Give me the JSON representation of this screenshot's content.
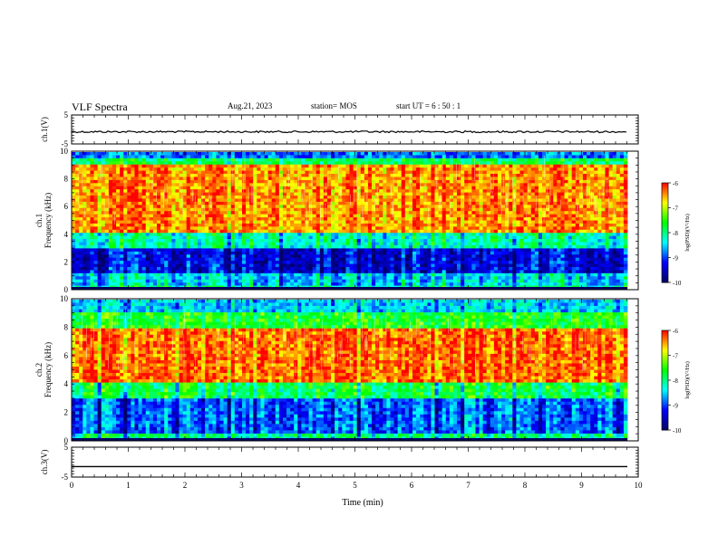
{
  "header": {
    "title": "VLF Spectra",
    "date": "Aug.21, 2023",
    "station": "station= MOS",
    "start": "start  UT =   6 : 50 : 1"
  },
  "chart_data": [
    {
      "type": "line",
      "panel": "ch1-waveform",
      "ylabel": "ch.1(V)",
      "ylim": [
        -5,
        5
      ],
      "yticks": [
        "5",
        "-5"
      ],
      "xlim": [
        0,
        10
      ],
      "series": [
        {
          "values_note": "",
          "level": -0.8
        }
      ]
    },
    {
      "type": "heatmap",
      "panel": "ch1-spectrogram",
      "ylabel_lines": [
        "ch.1",
        "Frequency (kHz)"
      ],
      "ylim": [
        0,
        10
      ],
      "yticks": [
        "0",
        "2",
        "4",
        "6",
        "8",
        "10"
      ],
      "xlim": [
        0,
        10
      ],
      "colorbar": {
        "label": "log(PSD)(V²/Hz)",
        "range": [
          -10,
          -6
        ],
        "ticks": [
          "-6",
          "-7",
          "-8",
          "-9",
          "-10"
        ]
      },
      "bands": [
        {
          "from": 0,
          "to": 0.3,
          "level": -8.0
        },
        {
          "from": 0.3,
          "to": 1.2,
          "level": -8.4
        },
        {
          "from": 1.2,
          "to": 3.0,
          "level": -9.3
        },
        {
          "from": 3.0,
          "to": 4.0,
          "level": -8.1
        },
        {
          "from": 4.0,
          "to": 9.0,
          "level": -6.4
        },
        {
          "from": 9.0,
          "to": 9.5,
          "level": -7.8
        },
        {
          "from": 9.5,
          "to": 10,
          "level": -8.8
        }
      ]
    },
    {
      "type": "heatmap",
      "panel": "ch2-spectrogram",
      "ylabel_lines": [
        "ch.2",
        "Frequency (kHz)"
      ],
      "ylim": [
        0,
        10
      ],
      "yticks": [
        "0",
        "2",
        "4",
        "6",
        "8",
        "10"
      ],
      "xlim": [
        0,
        10
      ],
      "colorbar": {
        "label": "log(PSD)(V²/Hz)",
        "range": [
          -10,
          -6
        ],
        "ticks": [
          "-6",
          "-7",
          "-8",
          "-9",
          "-10"
        ]
      },
      "bands": [
        {
          "from": 0,
          "to": 0.4,
          "level": -8.0
        },
        {
          "from": 0.4,
          "to": 3.0,
          "level": -8.9
        },
        {
          "from": 3.0,
          "to": 4.0,
          "level": -7.8
        },
        {
          "from": 4.0,
          "to": 8.0,
          "level": -6.3
        },
        {
          "from": 8.0,
          "to": 9.0,
          "level": -7.6
        },
        {
          "from": 9.0,
          "to": 10,
          "level": -8.5
        }
      ]
    },
    {
      "type": "line",
      "panel": "ch3-waveform",
      "ylabel": "ch.3(V)",
      "ylim": [
        -5,
        5
      ],
      "yticks": [
        "5",
        "-5"
      ],
      "xlim": [
        0,
        10
      ],
      "xlabel": "Time (min)",
      "xticks": [
        "0",
        "1",
        "2",
        "3",
        "4",
        "5",
        "6",
        "7",
        "8",
        "9",
        "10"
      ],
      "series": [
        {
          "values_note": "",
          "level": -1.5
        }
      ]
    }
  ],
  "colors": {
    "scale": [
      "#000066",
      "#0000ff",
      "#00ffff",
      "#00ff00",
      "#ffff00",
      "#ff0000",
      "#ffffff"
    ]
  }
}
